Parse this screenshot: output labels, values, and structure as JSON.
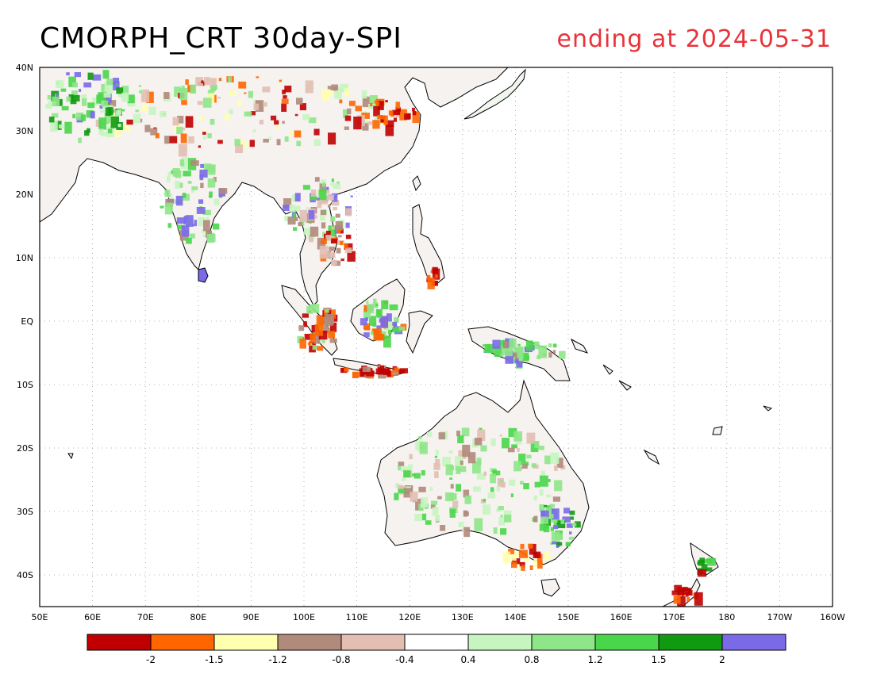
{
  "header": {
    "title": "CMORPH_CRT 30day-SPI",
    "subtitle": "ending at 2024-05-31"
  },
  "axes": {
    "lat_labels": [
      "40N",
      "30N",
      "20N",
      "10N",
      "EQ",
      "10S",
      "20S",
      "30S",
      "40S"
    ],
    "lon_labels": [
      "50E",
      "60E",
      "70E",
      "80E",
      "90E",
      "100E",
      "110E",
      "120E",
      "130E",
      "140E",
      "150E",
      "160E",
      "170E",
      "180",
      "170W",
      "160W"
    ]
  },
  "colorbar": {
    "labels": [
      "-2",
      "-1.5",
      "-1.2",
      "-0.8",
      "-0.4",
      "0.4",
      "0.8",
      "1.2",
      "1.5",
      "2"
    ],
    "colors": [
      "#c00000",
      "#ff6600",
      "#ffffb0",
      "#b08a7a",
      "#e2bfb2",
      "#ffffff",
      "#c6f5c0",
      "#8ee688",
      "#4ad64a",
      "#109a10",
      "#7a6ae8"
    ]
  },
  "colors": {
    "title_right": "#e8333a",
    "grid": "#9a9a9a"
  }
}
